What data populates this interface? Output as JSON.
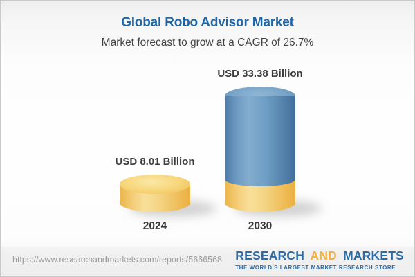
{
  "title": "Global Robo Advisor Market",
  "subtitle": "Market forecast to grow at a CAGR of 26.7%",
  "chart_data": {
    "type": "bar",
    "style": "3d-cylinder",
    "categories": [
      "2024",
      "2030"
    ],
    "values": [
      8.01,
      33.38
    ],
    "unit": "USD Billion",
    "value_labels": [
      "USD 8.01 Billion",
      "USD 33.38 Billion"
    ],
    "title": "Global Robo Advisor Market",
    "subtitle": "Market forecast to grow at a CAGR of 26.7%",
    "cagr_percent": 26.7,
    "xlabel": "",
    "ylabel": "",
    "ylim": [
      0,
      33.38
    ],
    "grid": false,
    "legend": "none",
    "bar_colors": {
      "bar_2024": "#f0bd55",
      "bar_2030_top_segment": "#5e8eb8",
      "bar_2030_base_segment": "#f0bd55"
    }
  },
  "colors": {
    "title_blue": "#1e66a8",
    "subtitle_gray": "#424242",
    "label_dark": "#3d3d3d",
    "url_gray": "#9b9b9b",
    "logo_blue": "#2d6ba6",
    "logo_orange": "#f1b13c",
    "footer_bg": "#efefef"
  },
  "footer": {
    "url": "https://www.researchandmarkets.com/reports/5666568",
    "logo": {
      "part1": "RESEARCH",
      "part2": "AND",
      "part3": "MARKETS",
      "tagline": "THE WORLD'S LARGEST MARKET RESEARCH STORE"
    }
  }
}
